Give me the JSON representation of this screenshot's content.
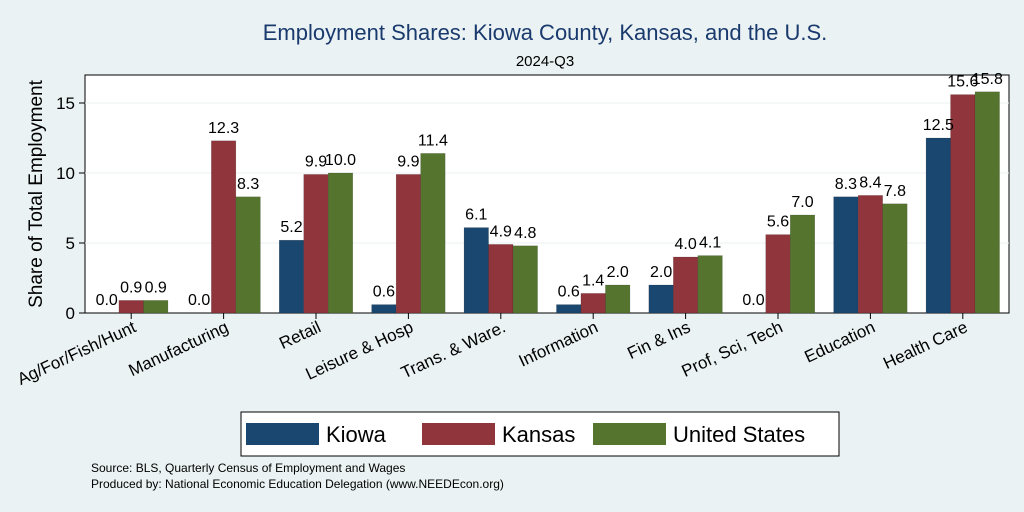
{
  "chart_data": {
    "type": "bar",
    "title": "Employment Shares: Kiowa County, Kansas, and the U.S.",
    "subtitle": "2024-Q3",
    "ylabel": "Share of Total Employment",
    "xlabel": "",
    "ylim": [
      0,
      17
    ],
    "yticks": [
      0,
      5,
      10,
      15
    ],
    "grid": true,
    "legend_position": "bottom",
    "categories": [
      "Ag/For/Fish/Hunt",
      "Manufacturing",
      "Retail",
      "Leisure & Hosp",
      "Trans. & Ware.",
      "Information",
      "Fin & Ins",
      "Prof, Sci, Tech",
      "Education",
      "Health Care"
    ],
    "series": [
      {
        "name": "Kiowa",
        "color": "#1a476f",
        "values": [
          0.0,
          0.0,
          5.2,
          0.6,
          6.1,
          0.6,
          2.0,
          0.0,
          8.3,
          12.5
        ],
        "labels": [
          "0.0",
          "0.0",
          "5.2",
          "0.6",
          "6.1",
          "0.6",
          "2.0",
          "0.0",
          "8.3",
          "12.5"
        ]
      },
      {
        "name": "Kansas",
        "color": "#90353b",
        "values": [
          0.9,
          12.3,
          9.9,
          9.9,
          4.9,
          1.4,
          4.0,
          5.6,
          8.4,
          15.6
        ],
        "labels": [
          "0.9",
          "12.3",
          "9.9",
          "9.9",
          "4.9",
          "1.4",
          "4.0",
          "5.6",
          "8.4",
          "15.6"
        ]
      },
      {
        "name": "United States",
        "color": "#55752f",
        "values": [
          0.9,
          8.3,
          10.0,
          11.4,
          4.8,
          2.0,
          4.1,
          7.0,
          7.8,
          15.8
        ],
        "labels": [
          "0.9",
          "8.3",
          "10.0",
          "11.4",
          "4.8",
          "2.0",
          "4.1",
          "7.0",
          "7.8",
          "15.8"
        ]
      }
    ]
  },
  "notes": {
    "source": "Source: BLS, Quarterly Census of Employment and Wages",
    "produced_by": "Produced by: National Economic Education Delegation (www.NEEDEcon.org)"
  }
}
